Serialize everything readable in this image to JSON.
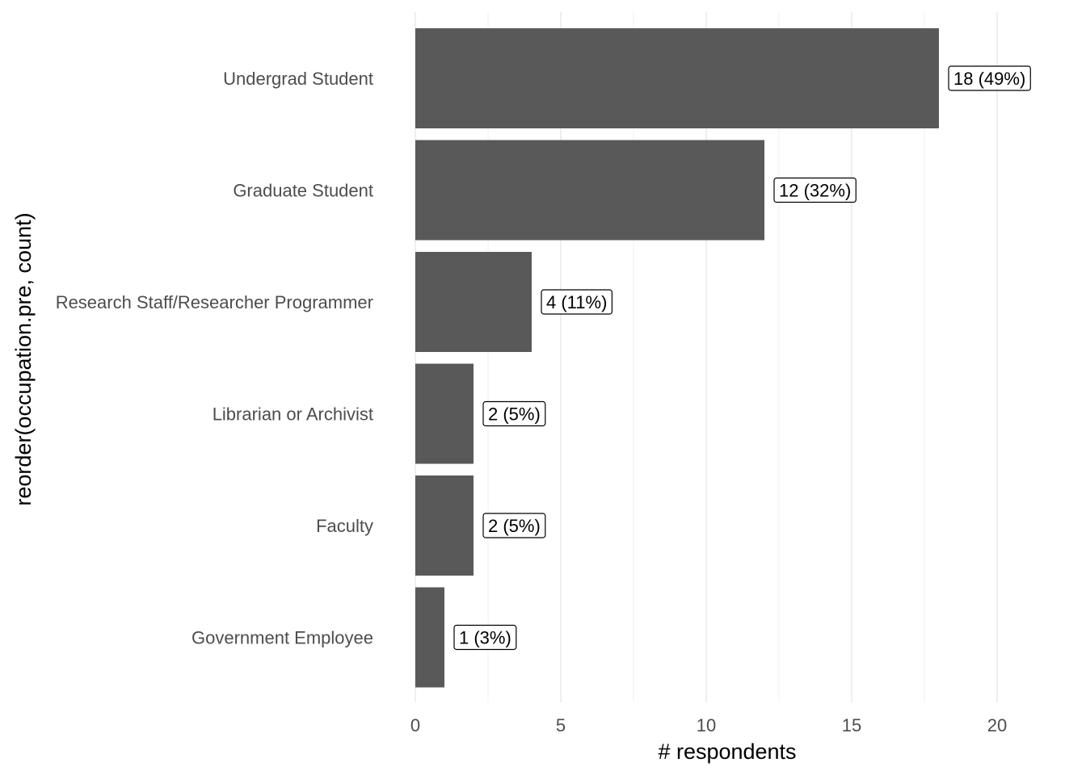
{
  "chart_data": {
    "type": "bar",
    "orientation": "horizontal",
    "categories": [
      "Undergrad Student",
      "Graduate Student",
      "Research Staff/Researcher Programmer",
      "Librarian or Archivist",
      "Faculty",
      "Government Employee"
    ],
    "values": [
      18,
      12,
      4,
      2,
      2,
      1
    ],
    "data_labels": [
      "18 (49%)",
      "12 (32%)",
      "4 (11%)",
      "2 (5%)",
      "2 (5%)",
      "1 (3%)"
    ],
    "xlabel": "# respondents",
    "ylabel": "reorder(occupation.pre, count)",
    "xlim": [
      0,
      21
    ],
    "xticks": [
      0,
      5,
      10,
      15,
      20
    ],
    "grid": true,
    "bar_color": "#595959",
    "grid_color": "#ebebeb"
  }
}
